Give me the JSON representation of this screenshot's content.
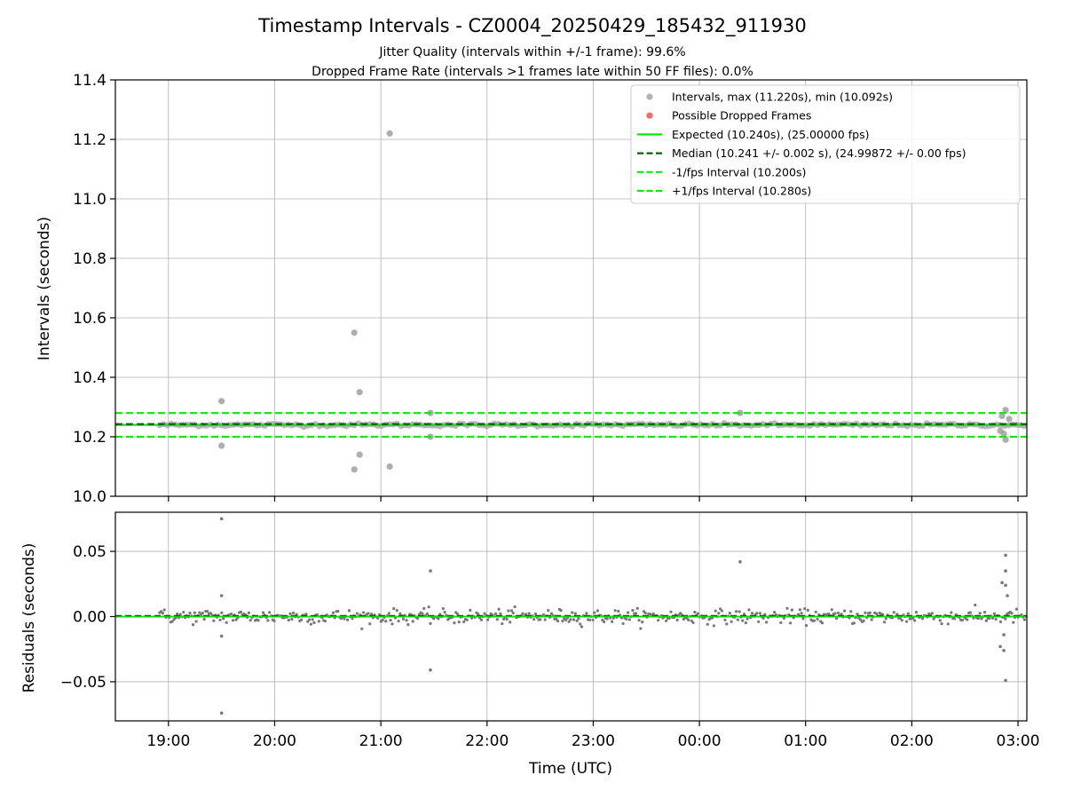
{
  "chart_data": [
    {
      "type": "scatter",
      "panel": "intervals",
      "title": "Timestamp Intervals - CZ0004_20250429_185432_911930",
      "subtitle_lines": [
        "Jitter Quality (intervals within +/-1 frame): 99.6%",
        "Dropped Frame Rate (intervals >1 frames late within 50 FF files): 0.0%"
      ],
      "ylabel": "Intervals (seconds)",
      "xlim": [
        "18:30",
        "03:05"
      ],
      "ylim": [
        10.0,
        11.4
      ],
      "y_ticks": [
        "10.0",
        "10.2",
        "10.4",
        "10.6",
        "10.8",
        "11.0",
        "11.2",
        "11.4"
      ],
      "grid": true,
      "legend_position": "top-right",
      "legend": [
        {
          "label": "Intervals, max (11.220s), min (10.092s)",
          "kind": "marker",
          "color": "#a0a0a0"
        },
        {
          "label": "Possible Dropped Frames",
          "kind": "marker",
          "color": "#ff6666"
        },
        {
          "label": "Expected (10.240s), (25.00000 fps)",
          "kind": "solid",
          "color": "#00ee00"
        },
        {
          "label": "Median (10.241 +/- 0.002 s), (24.99872 +/- 0.00 fps)",
          "kind": "dashed",
          "color": "#006400"
        },
        {
          "label": "-1/fps Interval (10.200s)",
          "kind": "dashed",
          "color": "#00ee00"
        },
        {
          "label": "+1/fps Interval (10.280s)",
          "kind": "dashed",
          "color": "#00ee00"
        }
      ],
      "reference_lines": {
        "expected": 10.24,
        "median": 10.241,
        "minus_one_frame": 10.2,
        "plus_one_frame": 10.28
      },
      "series": [
        {
          "name": "Intervals, max (11.220s), min (10.092s)",
          "baseline": 10.24,
          "baseline_start": "18:55",
          "baseline_end": "03:05",
          "outliers": [
            {
              "x": "19:30",
              "y": 10.32
            },
            {
              "x": "19:30",
              "y": 10.17
            },
            {
              "x": "20:45",
              "y": 10.55
            },
            {
              "x": "20:48",
              "y": 10.35
            },
            {
              "x": "20:45",
              "y": 10.09
            },
            {
              "x": "20:48",
              "y": 10.14
            },
            {
              "x": "21:05",
              "y": 11.22
            },
            {
              "x": "21:05",
              "y": 10.1
            },
            {
              "x": "21:28",
              "y": 10.28
            },
            {
              "x": "21:28",
              "y": 10.2
            },
            {
              "x": "00:23",
              "y": 10.28
            },
            {
              "x": "02:51",
              "y": 10.27
            },
            {
              "x": "02:53",
              "y": 10.29
            },
            {
              "x": "02:52",
              "y": 10.21
            },
            {
              "x": "02:53",
              "y": 10.19
            },
            {
              "x": "02:50",
              "y": 10.22
            },
            {
              "x": "02:55",
              "y": 10.26
            }
          ]
        },
        {
          "name": "Possible Dropped Frames",
          "points": []
        }
      ]
    },
    {
      "type": "scatter",
      "panel": "residuals",
      "ylabel": "Residuals (seconds)",
      "xlabel": "Time (UTC)",
      "xlim": [
        "18:30",
        "03:05"
      ],
      "ylim": [
        -0.08,
        0.08
      ],
      "y_ticks": [
        {
          "value": 0.05,
          "label": "0.05"
        },
        {
          "value": 0.0,
          "label": "0.00"
        },
        {
          "value": -0.05,
          "label": "−0.05"
        }
      ],
      "x_ticks": [
        "19:00",
        "20:00",
        "21:00",
        "22:00",
        "23:00",
        "00:00",
        "01:00",
        "02:00",
        "03:00"
      ],
      "grid": true,
      "reference_line": 0.0,
      "series": [
        {
          "noise_amplitude": 0.006,
          "outliers": [
            {
              "x": "19:30",
              "y": 0.075
            },
            {
              "x": "19:30",
              "y": -0.074
            },
            {
              "x": "19:30",
              "y": 0.016
            },
            {
              "x": "19:30",
              "y": -0.015
            },
            {
              "x": "21:28",
              "y": 0.035
            },
            {
              "x": "21:28",
              "y": -0.041
            },
            {
              "x": "00:23",
              "y": 0.042
            },
            {
              "x": "02:53",
              "y": 0.047
            },
            {
              "x": "02:53",
              "y": 0.035
            },
            {
              "x": "02:53",
              "y": -0.049
            },
            {
              "x": "02:51",
              "y": 0.026
            },
            {
              "x": "02:52",
              "y": -0.026
            },
            {
              "x": "02:53",
              "y": 0.024
            },
            {
              "x": "02:50",
              "y": -0.023
            },
            {
              "x": "02:54",
              "y": 0.016
            },
            {
              "x": "02:52",
              "y": -0.014
            }
          ]
        }
      ]
    }
  ]
}
